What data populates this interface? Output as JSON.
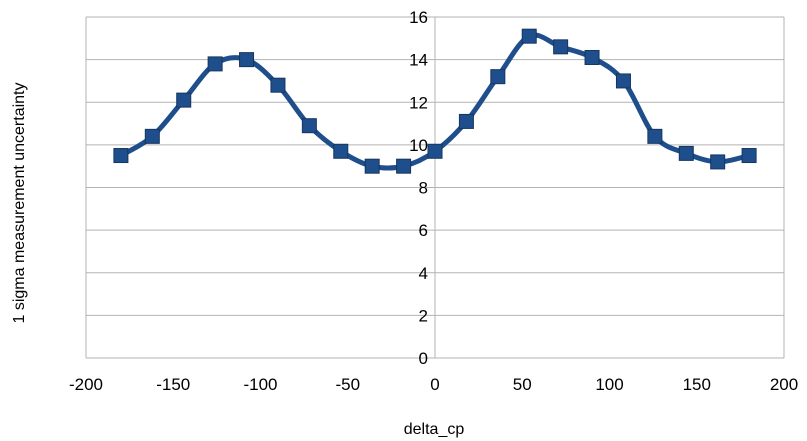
{
  "chart_data": {
    "type": "line",
    "title": "",
    "xlabel": "delta_cp",
    "ylabel": "1 sigma measurement uncertainty",
    "xlim": [
      -200,
      200
    ],
    "ylim": [
      0,
      16
    ],
    "xticks": [
      -200,
      -150,
      -100,
      -50,
      0,
      50,
      100,
      150,
      200
    ],
    "yticks": [
      0,
      2,
      4,
      6,
      8,
      10,
      12,
      14,
      16
    ],
    "x_tick_labels": [
      "-200",
      "-150",
      "-100",
      "-50",
      "0",
      "50",
      "100",
      "150",
      "200"
    ],
    "y_tick_labels": [
      "0",
      "2",
      "4",
      "6",
      "8",
      "10",
      "12",
      "14",
      "16"
    ],
    "grid": "horizontal",
    "legend": "none",
    "series": [
      {
        "color": "#1f4e8c",
        "marker": "square",
        "smooth": true,
        "x": [
          -180,
          -162,
          -144,
          -126,
          -108,
          -90,
          -72,
          -54,
          -36,
          -18,
          0,
          18,
          36,
          54,
          72,
          90,
          108,
          126,
          144,
          162,
          180
        ],
        "y": [
          9.5,
          10.4,
          12.1,
          13.8,
          14.0,
          12.8,
          10.9,
          9.7,
          9.0,
          9.0,
          9.7,
          11.1,
          13.2,
          15.1,
          14.6,
          14.1,
          13.0,
          10.4,
          9.6,
          9.2,
          9.5
        ]
      }
    ]
  }
}
